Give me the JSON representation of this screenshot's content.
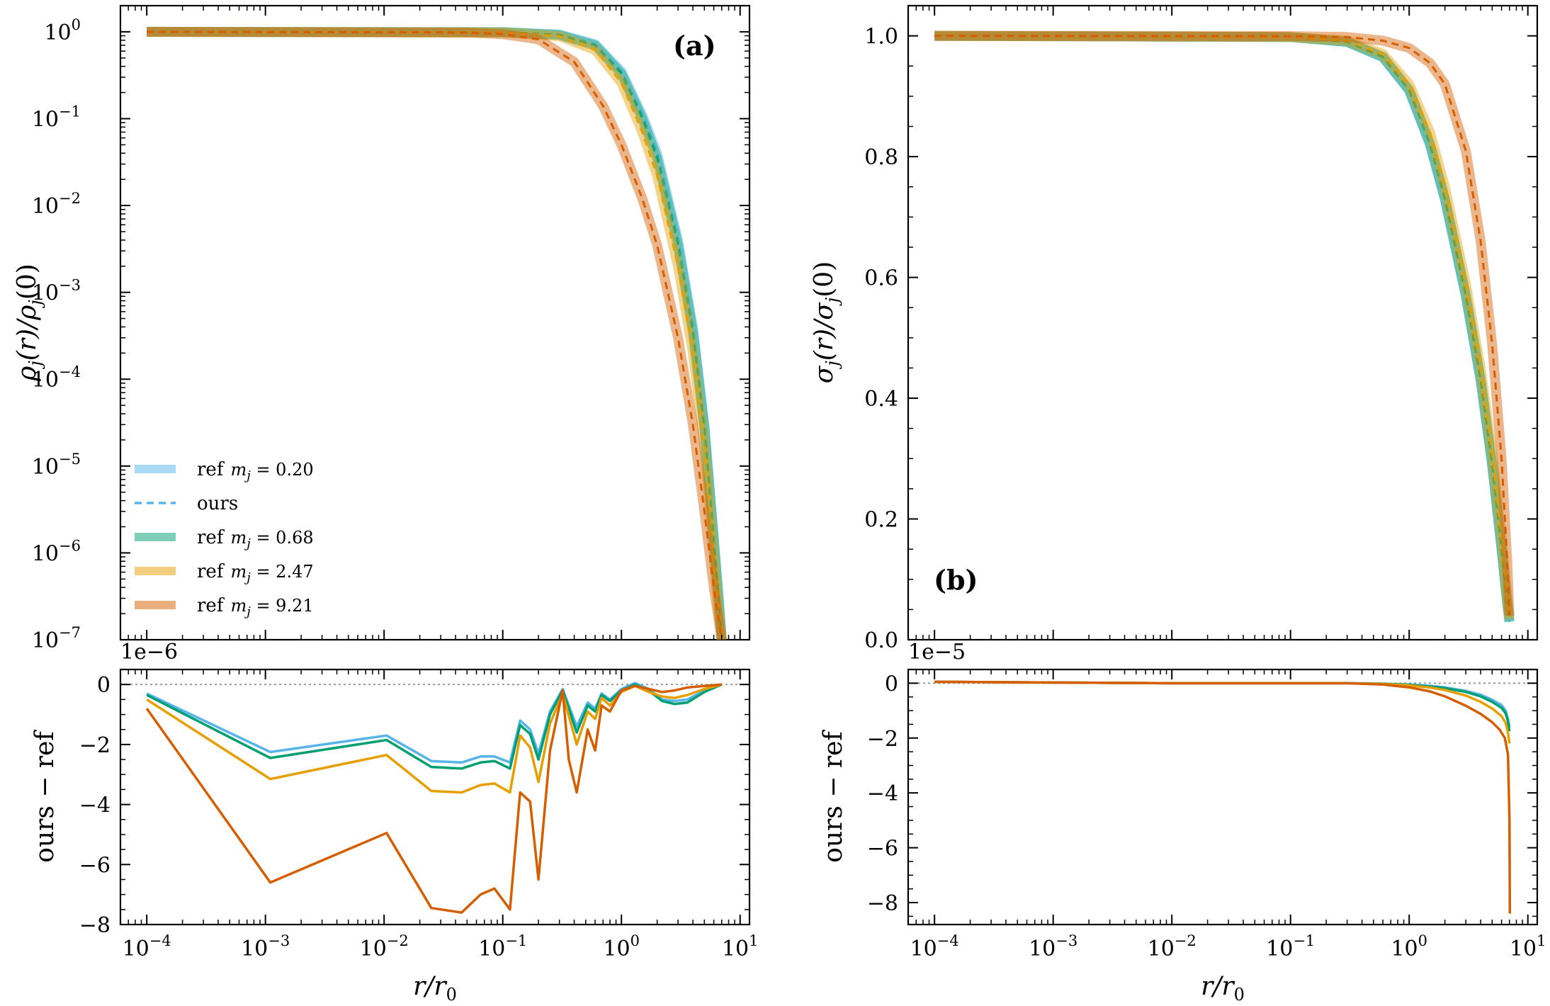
{
  "chart_data": [
    {
      "type": "line",
      "panel_label": "(a)",
      "ylabel": "ρj(r)/ρj(0)",
      "ylabel_parts": {
        "main": "ρ",
        "sub": "j",
        "rest": "(r)/ρ",
        "sub2": "j",
        "tail": "(0)"
      },
      "xscale": "log",
      "yscale": "log",
      "xlim": [
        6e-05,
        12
      ],
      "ylim": [
        1e-07,
        2
      ],
      "grid": false,
      "legend": {
        "position": "lower-left",
        "entries": [
          {
            "prefix": "ref",
            "math": "mj = 0.20",
            "mj": "0.20",
            "style": "band",
            "color": "#56B4E9"
          },
          {
            "prefix": "ours",
            "math": "",
            "style": "dashed",
            "color": "#56B4E9"
          },
          {
            "prefix": "ref",
            "math": "mj = 0.68",
            "mj": "0.68",
            "style": "band",
            "color": "#009E73"
          },
          {
            "prefix": "ref",
            "math": "mj = 2.47",
            "mj": "2.47",
            "style": "band",
            "color": "#E69F00"
          },
          {
            "prefix": "ref",
            "math": "mj = 9.21",
            "mj": "9.21",
            "style": "band",
            "color": "#D55E00"
          }
        ]
      },
      "yticks": [
        {
          "value": 1.0,
          "base": "10",
          "exp": "0"
        },
        {
          "value": 0.1,
          "base": "10",
          "exp": "−1"
        },
        {
          "value": 0.01,
          "base": "10",
          "exp": "−2"
        },
        {
          "value": 0.001,
          "base": "10",
          "exp": "−3"
        },
        {
          "value": 0.0001,
          "base": "10",
          "exp": "−4"
        },
        {
          "value": 1e-05,
          "base": "10",
          "exp": "−5"
        },
        {
          "value": 1e-06,
          "base": "10",
          "exp": "−6"
        },
        {
          "value": 1e-07,
          "base": "10",
          "exp": "−7"
        }
      ],
      "series": [
        {
          "name": "mj = 0.20",
          "color": "#56B4E9",
          "x": [
            0.0001,
            0.1,
            0.3,
            0.6,
            1.0,
            1.5,
            2.0,
            3.0,
            4.0,
            5.0,
            6.0,
            6.6,
            7.0
          ],
          "y": [
            1.0,
            0.99,
            0.93,
            0.72,
            0.35,
            0.11,
            0.04,
            0.004,
            0.0004,
            3e-05,
            1.5e-06,
            3e-07,
            1e-07
          ]
        },
        {
          "name": "mj = 0.68",
          "color": "#009E73",
          "x": [
            0.0001,
            0.1,
            0.3,
            0.6,
            1.0,
            1.5,
            2.0,
            3.0,
            4.0,
            5.0,
            6.0,
            6.6,
            7.0
          ],
          "y": [
            1.0,
            0.99,
            0.92,
            0.7,
            0.33,
            0.1,
            0.035,
            0.0035,
            0.00035,
            2.8e-05,
            1.4e-06,
            3e-07,
            1e-07
          ]
        },
        {
          "name": "mj = 2.47",
          "color": "#E69F00",
          "x": [
            0.0001,
            0.1,
            0.3,
            0.6,
            1.0,
            1.5,
            2.0,
            3.0,
            4.0,
            5.0,
            6.0,
            6.6,
            7.0
          ],
          "y": [
            1.0,
            0.985,
            0.89,
            0.62,
            0.26,
            0.07,
            0.022,
            0.002,
            0.0002,
            1.7e-05,
            9e-07,
            2e-07,
            1e-07
          ]
        },
        {
          "name": "mj = 9.21",
          "color": "#D55E00",
          "x": [
            0.0001,
            0.05,
            0.1,
            0.2,
            0.4,
            0.7,
            1.0,
            1.5,
            2.0,
            3.0,
            4.0,
            5.0,
            6.0,
            6.7,
            7.0
          ],
          "y": [
            1.0,
            0.98,
            0.94,
            0.82,
            0.45,
            0.14,
            0.05,
            0.012,
            0.0035,
            0.0003,
            3e-05,
            3e-06,
            4e-07,
            1.5e-07,
            1e-07
          ]
        }
      ]
    },
    {
      "type": "line",
      "panel_label": "(b)",
      "ylabel": "σj(r)/σj(0)",
      "ylabel_parts": {
        "main": "σ",
        "sub": "j",
        "rest": "(r)/σ",
        "sub2": "j",
        "tail": "(0)"
      },
      "xscale": "log",
      "yscale": "linear",
      "xlim": [
        6e-05,
        12
      ],
      "ylim": [
        0.0,
        1.05
      ],
      "grid": false,
      "yticks": [
        {
          "value": 0.0,
          "label": "0.0"
        },
        {
          "value": 0.2,
          "label": "0.2"
        },
        {
          "value": 0.4,
          "label": "0.4"
        },
        {
          "value": 0.6,
          "label": "0.6"
        },
        {
          "value": 0.8,
          "label": "0.8"
        },
        {
          "value": 1.0,
          "label": "1.0"
        }
      ],
      "series": [
        {
          "name": "mj = 0.20",
          "color": "#56B4E9",
          "x": [
            0.0001,
            0.1,
            0.3,
            0.6,
            1.0,
            1.5,
            2.0,
            3.0,
            4.0,
            5.0,
            6.0,
            6.7,
            7.0
          ],
          "y": [
            1.0,
            0.998,
            0.99,
            0.965,
            0.91,
            0.82,
            0.73,
            0.57,
            0.43,
            0.29,
            0.15,
            0.06,
            0.03
          ]
        },
        {
          "name": "mj = 0.68",
          "color": "#009E73",
          "x": [
            0.0001,
            0.1,
            0.3,
            0.6,
            1.0,
            1.5,
            2.0,
            3.0,
            4.0,
            5.0,
            6.0,
            6.7,
            7.0
          ],
          "y": [
            1.0,
            0.998,
            0.99,
            0.965,
            0.91,
            0.82,
            0.73,
            0.57,
            0.43,
            0.29,
            0.15,
            0.06,
            0.03
          ]
        },
        {
          "name": "mj = 2.47",
          "color": "#E69F00",
          "x": [
            0.0001,
            0.1,
            0.3,
            0.6,
            1.0,
            1.5,
            2.0,
            3.0,
            4.0,
            5.0,
            6.0,
            6.7,
            7.0
          ],
          "y": [
            1.0,
            0.998,
            0.992,
            0.97,
            0.92,
            0.84,
            0.75,
            0.59,
            0.45,
            0.31,
            0.17,
            0.07,
            0.035
          ]
        },
        {
          "name": "mj = 9.21",
          "color": "#D55E00",
          "x": [
            0.0001,
            0.1,
            0.3,
            0.6,
            1.0,
            1.5,
            2.0,
            3.0,
            4.0,
            5.0,
            6.0,
            6.7,
            7.0
          ],
          "y": [
            1.0,
            0.9995,
            0.998,
            0.992,
            0.98,
            0.955,
            0.92,
            0.81,
            0.66,
            0.49,
            0.3,
            0.13,
            0.04
          ]
        }
      ]
    },
    {
      "type": "line",
      "ylabel": "ours − ref",
      "xlabel": "r/r0",
      "xlabel_parts": {
        "a": "r",
        "b": "/r",
        "sub": "0"
      },
      "offset_text": "1e−6",
      "xscale": "log",
      "yscale": "linear",
      "xlim": [
        6e-05,
        12
      ],
      "ylim": [
        -8,
        0.5
      ],
      "reference_line": 0,
      "grid": false,
      "xticks": [
        {
          "value": 0.0001,
          "base": "10",
          "exp": "−4"
        },
        {
          "value": 0.001,
          "base": "10",
          "exp": "−3"
        },
        {
          "value": 0.01,
          "base": "10",
          "exp": "−2"
        },
        {
          "value": 0.1,
          "base": "10",
          "exp": "−1"
        },
        {
          "value": 1.0,
          "base": "10",
          "exp": "0"
        },
        {
          "value": 10.0,
          "base": "10",
          "exp": "1"
        }
      ],
      "yticks": [
        {
          "value": 0,
          "label": "0"
        },
        {
          "value": -2,
          "label": "−2"
        },
        {
          "value": -4,
          "label": "−4"
        },
        {
          "value": -6,
          "label": "−6"
        },
        {
          "value": -8,
          "label": "−8"
        }
      ],
      "series": [
        {
          "name": "mj = 0.20",
          "color": "#56B4E9",
          "x": [
            0.0001,
            0.0011,
            0.0105,
            0.025,
            0.045,
            0.065,
            0.085,
            0.115,
            0.14,
            0.17,
            0.2,
            0.25,
            0.32,
            0.42,
            0.52,
            0.6,
            0.68,
            0.8,
            1.0,
            1.3,
            1.7,
            2.2,
            2.8,
            3.6,
            5.0,
            7.0
          ],
          "y": [
            -0.3,
            -2.25,
            -1.7,
            -2.55,
            -2.6,
            -2.4,
            -2.4,
            -2.6,
            -1.2,
            -1.5,
            -2.3,
            -0.9,
            -0.15,
            -1.4,
            -0.6,
            -0.8,
            -0.3,
            -0.5,
            -0.15,
            0.05,
            -0.15,
            -0.5,
            -0.55,
            -0.5,
            -0.2,
            0.0
          ]
        },
        {
          "name": "mj = 0.68",
          "color": "#009E73",
          "x": [
            0.0001,
            0.0011,
            0.0105,
            0.025,
            0.045,
            0.065,
            0.085,
            0.115,
            0.14,
            0.17,
            0.2,
            0.25,
            0.32,
            0.42,
            0.52,
            0.6,
            0.68,
            0.8,
            1.0,
            1.3,
            1.7,
            2.2,
            2.8,
            3.6,
            5.0,
            7.0
          ],
          "y": [
            -0.35,
            -2.45,
            -1.85,
            -2.75,
            -2.8,
            -2.6,
            -2.55,
            -2.8,
            -1.35,
            -1.65,
            -2.5,
            -1.0,
            -0.2,
            -1.6,
            -0.7,
            -0.9,
            -0.35,
            -0.55,
            -0.2,
            0.0,
            -0.2,
            -0.55,
            -0.65,
            -0.6,
            -0.25,
            0.0
          ]
        },
        {
          "name": "mj = 2.47",
          "color": "#E69F00",
          "x": [
            0.0001,
            0.0011,
            0.0105,
            0.025,
            0.045,
            0.065,
            0.085,
            0.115,
            0.14,
            0.17,
            0.2,
            0.25,
            0.32,
            0.42,
            0.52,
            0.6,
            0.68,
            0.8,
            1.0,
            1.3,
            1.7,
            2.2,
            2.8,
            3.6,
            5.0,
            7.0
          ],
          "y": [
            -0.5,
            -3.15,
            -2.35,
            -3.55,
            -3.6,
            -3.35,
            -3.3,
            -3.6,
            -1.7,
            -2.1,
            -3.25,
            -1.3,
            -0.3,
            -2.0,
            -0.9,
            -1.15,
            -0.45,
            -0.7,
            -0.25,
            -0.05,
            -0.25,
            -0.4,
            -0.45,
            -0.35,
            -0.15,
            0.0
          ]
        },
        {
          "name": "mj = 9.21",
          "color": "#D55E00",
          "x": [
            0.0001,
            0.0011,
            0.0105,
            0.025,
            0.045,
            0.065,
            0.085,
            0.115,
            0.14,
            0.17,
            0.2,
            0.25,
            0.32,
            0.36,
            0.42,
            0.52,
            0.6,
            0.68,
            0.8,
            1.0,
            1.3,
            1.7,
            2.2,
            2.8,
            3.6,
            5.0,
            7.0
          ],
          "y": [
            -0.8,
            -6.6,
            -4.95,
            -7.45,
            -7.6,
            -7.0,
            -6.8,
            -7.5,
            -3.6,
            -3.9,
            -6.5,
            -2.2,
            -0.2,
            -2.5,
            -3.6,
            -1.5,
            -2.2,
            -0.7,
            -0.9,
            -0.2,
            -0.05,
            -0.15,
            -0.25,
            -0.2,
            -0.1,
            -0.05,
            0.0
          ]
        }
      ]
    },
    {
      "type": "line",
      "ylabel": "ours − ref",
      "xlabel": "r/r0",
      "xlabel_parts": {
        "a": "r",
        "b": "/r",
        "sub": "0"
      },
      "offset_text": "1e−5",
      "xscale": "log",
      "yscale": "linear",
      "xlim": [
        6e-05,
        12
      ],
      "ylim": [
        -8.8,
        0.5
      ],
      "reference_line": 0,
      "grid": false,
      "xticks": [
        {
          "value": 0.0001,
          "base": "10",
          "exp": "−4"
        },
        {
          "value": 0.001,
          "base": "10",
          "exp": "−3"
        },
        {
          "value": 0.01,
          "base": "10",
          "exp": "−2"
        },
        {
          "value": 0.1,
          "base": "10",
          "exp": "−1"
        },
        {
          "value": 1.0,
          "base": "10",
          "exp": "0"
        },
        {
          "value": 10.0,
          "base": "10",
          "exp": "1"
        }
      ],
      "yticks": [
        {
          "value": 0,
          "label": "0"
        },
        {
          "value": -2,
          "label": "−2"
        },
        {
          "value": -4,
          "label": "−4"
        },
        {
          "value": -6,
          "label": "−6"
        },
        {
          "value": -8,
          "label": "−8"
        }
      ],
      "series": [
        {
          "name": "mj = 0.20",
          "color": "#56B4E9",
          "x": [
            0.0001,
            0.01,
            0.1,
            0.3,
            0.6,
            1.0,
            1.5,
            2.0,
            3.0,
            4.0,
            5.0,
            6.0,
            6.5,
            6.8,
            7.0
          ],
          "y": [
            0.05,
            0.0,
            0.0,
            0.0,
            -0.02,
            -0.05,
            -0.1,
            -0.15,
            -0.28,
            -0.42,
            -0.6,
            -0.8,
            -1.0,
            -1.3,
            -1.6
          ]
        },
        {
          "name": "mj = 0.68",
          "color": "#009E73",
          "x": [
            0.0001,
            0.01,
            0.1,
            0.3,
            0.6,
            1.0,
            1.5,
            2.0,
            3.0,
            4.0,
            5.0,
            6.0,
            6.5,
            6.8,
            7.0
          ],
          "y": [
            0.05,
            0.0,
            0.0,
            0.0,
            -0.02,
            -0.06,
            -0.12,
            -0.18,
            -0.32,
            -0.48,
            -0.68,
            -0.9,
            -1.1,
            -1.4,
            -1.75
          ]
        },
        {
          "name": "mj = 2.47",
          "color": "#E69F00",
          "x": [
            0.0001,
            0.01,
            0.1,
            0.3,
            0.6,
            1.0,
            1.5,
            2.0,
            3.0,
            4.0,
            5.0,
            6.0,
            6.5,
            6.8,
            7.0
          ],
          "y": [
            0.05,
            0.0,
            0.0,
            0.0,
            -0.03,
            -0.08,
            -0.16,
            -0.25,
            -0.45,
            -0.68,
            -0.92,
            -1.2,
            -1.45,
            -1.8,
            -2.2
          ]
        },
        {
          "name": "mj = 9.21",
          "color": "#D55E00",
          "x": [
            0.0001,
            0.01,
            0.1,
            0.3,
            0.6,
            1.0,
            1.5,
            2.0,
            3.0,
            4.0,
            5.0,
            5.8,
            6.4,
            6.8,
            7.0,
            7.05
          ],
          "y": [
            0.05,
            0.0,
            0.0,
            0.0,
            -0.05,
            -0.15,
            -0.3,
            -0.48,
            -0.82,
            -1.12,
            -1.42,
            -1.7,
            -2.0,
            -2.6,
            -5.0,
            -8.4
          ]
        }
      ]
    }
  ]
}
